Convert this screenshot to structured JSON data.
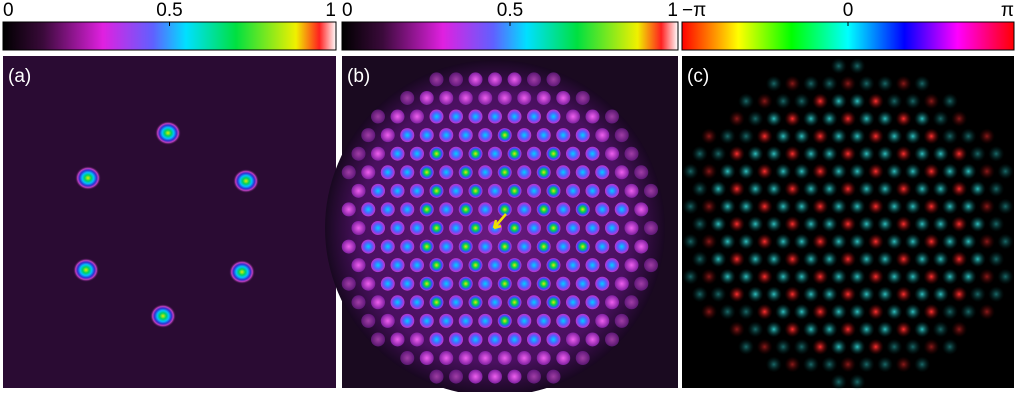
{
  "panels": [
    {
      "label": "(a)",
      "colorbar": {
        "range": [
          0,
          1
        ],
        "ticks": [
          0,
          0.5,
          1
        ]
      }
    },
    {
      "label": "(b)",
      "colorbar": {
        "range": [
          0,
          1
        ],
        "ticks": [
          0,
          0.5,
          1
        ]
      }
    },
    {
      "label": "(c)",
      "colorbar": {
        "range": [
          -3.14159,
          3.14159
        ],
        "ticks": [
          {
            "value": -3.14159,
            "label": "−π"
          },
          {
            "value": 0,
            "label": "0"
          },
          {
            "value": 3.14159,
            "label": "π"
          }
        ]
      }
    }
  ]
}
